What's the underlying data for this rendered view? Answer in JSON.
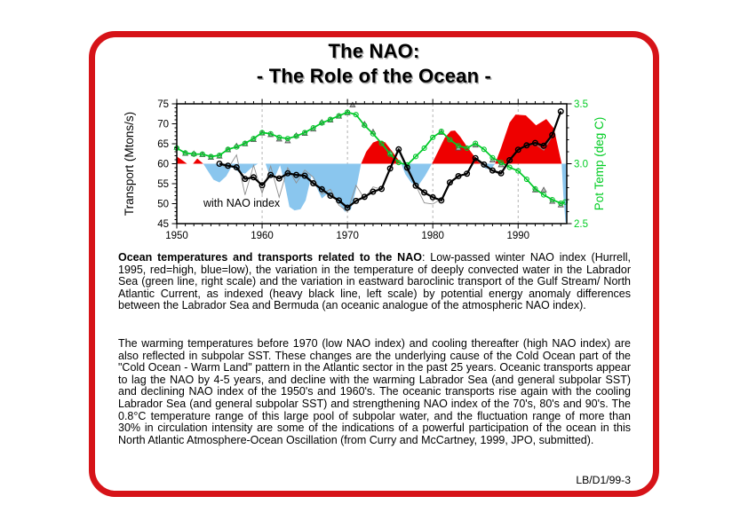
{
  "title": {
    "line1": "The NAO:",
    "line2": "- The Role of the Ocean -"
  },
  "caption_main": {
    "bold": "Ocean temperatures and transports related to the NAO",
    "rest": ": Low-passed winter NAO index (Hurrell, 1995, red=high, blue=low), the variation in the temperature of deeply convected water in the Labrador Sea (green line, right scale) and the variation in eastward baroclinic transport of the Gulf Stream/ North Atlantic Current, as indexed (heavy black line, left scale) by potential energy anomaly differences between the Labrador Sea and Bermuda (an oceanic analogue of the atmospheric NAO index)."
  },
  "caption_discussion": "The warming temperatures before 1970 (low NAO index) and cooling thereafter (high NAO index) are also reflected in subpolar SST. These changes are the underlying cause of the Cold Ocean part of the \"Cold Ocean - Warm Land\" pattern in the Atlantic sector in the past 25 years. Oceanic transports appear to lag the NAO by 4-5 years, and decline with the warming Labrador Sea (and general subpolar SST) and declining NAO index of the 1950's and 1960's. The oceanic transports rise again with the cooling Labrador Sea (and general subpolar SST) and strengthening NAO index of the 70's, 80's and 90's. The 0.8°C temperature range of this large pool of subpolar water, and the fluctuation range of more than 30% in circulation intensity are some of the indications of a powerful participation of the ocean in this North Atlantic Atmosphere-Ocean Oscillation (from Curry and McCartney, 1999, JPO, submitted).",
  "footer": {
    "doc_id": "LB/D1/99-3"
  },
  "chart_data": {
    "type": "line",
    "annotation": "with NAO index",
    "x_axis": {
      "min": 1950,
      "max": 1995.7,
      "major_ticks": [
        1950,
        1960,
        1970,
        1980,
        1990
      ],
      "gridlines": [
        1960,
        1970,
        1980,
        1990
      ],
      "minor_step": 1
    },
    "left_axis": {
      "label": "Transport (Mtons/s)",
      "min": 45,
      "max": 75,
      "ticks": [
        45,
        50,
        55,
        60,
        65,
        70,
        75
      ],
      "minor_step": 1,
      "color": "#000000"
    },
    "right_axis": {
      "label": "Pot Temp (deg C)",
      "min": 2.5,
      "max": 3.5,
      "ticks": [
        2.5,
        3.0,
        3.5
      ],
      "minor_step": 0.1,
      "color": "#00cc22"
    },
    "colors": {
      "nao_red": "#ee0000",
      "nao_blue": "#8ac6ee",
      "temp_green": "#00c828",
      "transport_black": "#000000",
      "transport_gray": "#909090",
      "triangle_gray": "#b8b8b8",
      "gridline": "#aaaaaa"
    },
    "nao_index": {
      "baseline": 60,
      "note": "red = high NAO, blue = low NAO, plotted on left (transport) scale",
      "points": [
        [
          1950,
          61.8
        ],
        [
          1950.7,
          60.8
        ],
        [
          1951.2,
          60
        ],
        [
          1951.9,
          60
        ],
        [
          1952.4,
          61.3
        ],
        [
          1953.1,
          60
        ],
        [
          1953.7,
          58
        ],
        [
          1954.3,
          56
        ],
        [
          1955,
          55.3
        ],
        [
          1955.8,
          56.9
        ],
        [
          1956.4,
          59.2
        ],
        [
          1957.2,
          58
        ],
        [
          1958,
          57.5
        ],
        [
          1958.7,
          58.9
        ],
        [
          1959.5,
          60
        ],
        [
          1960.4,
          60
        ],
        [
          1961,
          56.3
        ],
        [
          1961.6,
          57.2
        ],
        [
          1962.1,
          59.6
        ],
        [
          1962.6,
          55.5
        ],
        [
          1963.2,
          49.2
        ],
        [
          1963.8,
          48.3
        ],
        [
          1964.5,
          48.6
        ],
        [
          1965.1,
          50.8
        ],
        [
          1965.8,
          57.2
        ],
        [
          1966.4,
          54
        ],
        [
          1967,
          51.3
        ],
        [
          1967.7,
          52.6
        ],
        [
          1968.4,
          52
        ],
        [
          1969.1,
          49.8
        ],
        [
          1969.7,
          48
        ],
        [
          1970.4,
          48.5
        ],
        [
          1971,
          53.5
        ],
        [
          1971.6,
          60
        ],
        [
          1972.2,
          63
        ],
        [
          1973,
          65.3
        ],
        [
          1973.6,
          65.8
        ],
        [
          1974.4,
          65.4
        ],
        [
          1975.2,
          63.2
        ],
        [
          1976.3,
          60
        ],
        [
          1976.8,
          57.3
        ],
        [
          1977.5,
          55.2
        ],
        [
          1978.3,
          54.5
        ],
        [
          1979.1,
          57
        ],
        [
          1979.9,
          60
        ],
        [
          1980.6,
          63
        ],
        [
          1981.4,
          66.5
        ],
        [
          1982.1,
          68.2
        ],
        [
          1982.6,
          68.3
        ],
        [
          1983.2,
          66.8
        ],
        [
          1984,
          64.3
        ],
        [
          1985,
          61.5
        ],
        [
          1985.7,
          60
        ],
        [
          1986.2,
          58.7
        ],
        [
          1986.9,
          58.9
        ],
        [
          1987.3,
          60
        ],
        [
          1988,
          64
        ],
        [
          1989,
          70.3
        ],
        [
          1989.7,
          72.3
        ],
        [
          1990.9,
          72.1
        ],
        [
          1992.1,
          69.6
        ],
        [
          1993.3,
          71.2
        ],
        [
          1994.2,
          68.8
        ],
        [
          1995.1,
          60
        ],
        [
          1995.3,
          52
        ],
        [
          1995.55,
          45.4
        ],
        [
          1995.7,
          45.3
        ]
      ]
    },
    "transport_heavy": {
      "name": "Gulf Stream / North Atlantic Current transport (heavy black line, left scale, Mtons/s)",
      "points": [
        [
          1955,
          60
        ],
        [
          1956,
          59.5
        ],
        [
          1957,
          59.1
        ],
        [
          1958,
          56.2
        ],
        [
          1959,
          56.6
        ],
        [
          1960,
          54.6
        ],
        [
          1961,
          57.2
        ],
        [
          1962,
          56.3
        ],
        [
          1963,
          57.6
        ],
        [
          1964,
          57.2
        ],
        [
          1965,
          57
        ],
        [
          1966,
          55.1
        ],
        [
          1967,
          53.6
        ],
        [
          1968,
          52
        ],
        [
          1969,
          50.8
        ],
        [
          1970,
          49
        ],
        [
          1971,
          50.7
        ],
        [
          1972,
          51.7
        ],
        [
          1973,
          53
        ],
        [
          1974,
          53.7
        ],
        [
          1975,
          58.8
        ],
        [
          1976,
          63.6
        ],
        [
          1977,
          59
        ],
        [
          1978,
          54.5
        ],
        [
          1979,
          52.8
        ],
        [
          1980,
          51.6
        ],
        [
          1981,
          50.8
        ],
        [
          1982,
          55.3
        ],
        [
          1983,
          56.9
        ],
        [
          1984,
          57.5
        ],
        [
          1985,
          61.4
        ],
        [
          1986,
          59.8
        ],
        [
          1987,
          58.3
        ],
        [
          1988,
          57.6
        ],
        [
          1989,
          60.9
        ],
        [
          1990,
          63.5
        ],
        [
          1991,
          64.6
        ],
        [
          1992,
          65.2
        ],
        [
          1993,
          64.5
        ],
        [
          1994,
          67.2
        ],
        [
          1995,
          73.1
        ]
      ]
    },
    "transport_thin": {
      "name": "unsmoothed transport (thin gray line, left scale, Mtons/s)",
      "points": [
        [
          1955,
          60
        ],
        [
          1956,
          58.8
        ],
        [
          1957,
          62.2
        ],
        [
          1958,
          52.2
        ],
        [
          1959,
          59.6
        ],
        [
          1960,
          52.6
        ],
        [
          1961,
          59.4
        ],
        [
          1962,
          51.6
        ],
        [
          1963,
          59
        ],
        [
          1964,
          55.2
        ],
        [
          1965,
          58.4
        ],
        [
          1966,
          56.6
        ],
        [
          1967,
          52.4
        ],
        [
          1968,
          53.6
        ],
        [
          1969,
          49.6
        ],
        [
          1970,
          48
        ],
        [
          1971,
          54.6
        ],
        [
          1972,
          51.2
        ],
        [
          1973,
          54.2
        ],
        [
          1974,
          53.6
        ],
        [
          1975,
          58.6
        ],
        [
          1976,
          63.2
        ],
        [
          1977,
          58.2
        ],
        [
          1978,
          54.6
        ],
        [
          1979,
          50.2
        ],
        [
          1980,
          49.9
        ],
        [
          1981,
          51.2
        ],
        [
          1982,
          54.8
        ],
        [
          1983,
          57.2
        ],
        [
          1984,
          57.2
        ],
        [
          1985,
          61.1
        ],
        [
          1986,
          59.5
        ],
        [
          1987,
          58.1
        ],
        [
          1988,
          57.3
        ],
        [
          1989,
          60.7
        ],
        [
          1990,
          63.3
        ],
        [
          1991,
          64.4
        ],
        [
          1992,
          65
        ],
        [
          1993,
          63.4
        ],
        [
          1994,
          67
        ],
        [
          1995,
          72.9
        ]
      ]
    },
    "labrador_temp": {
      "name": "Labrador Sea potential temperature (green line, right scale, deg C)",
      "points": [
        [
          1950,
          3.13
        ],
        [
          1951,
          3.09
        ],
        [
          1952,
          3.08
        ],
        [
          1953,
          3.08
        ],
        [
          1954,
          3.06
        ],
        [
          1955,
          3.07
        ],
        [
          1956,
          3.12
        ],
        [
          1957,
          3.14
        ],
        [
          1958,
          3.17
        ],
        [
          1959,
          3.21
        ],
        [
          1960,
          3.26
        ],
        [
          1961,
          3.25
        ],
        [
          1962,
          3.22
        ],
        [
          1963,
          3.21
        ],
        [
          1964,
          3.23
        ],
        [
          1965,
          3.26
        ],
        [
          1966,
          3.3
        ],
        [
          1967,
          3.34
        ],
        [
          1968,
          3.37
        ],
        [
          1969,
          3.4
        ],
        [
          1970,
          3.43
        ],
        [
          1971,
          3.41
        ],
        [
          1972,
          3.32
        ],
        [
          1973,
          3.25
        ],
        [
          1974,
          3.17
        ],
        [
          1975,
          3.08
        ],
        [
          1976,
          3.01
        ],
        [
          1977,
          2.99
        ],
        [
          1978,
          3.06
        ],
        [
          1979,
          3.13
        ],
        [
          1980,
          3.22
        ],
        [
          1981,
          3.27
        ],
        [
          1982,
          3.2
        ],
        [
          1983,
          3.15
        ],
        [
          1984,
          3.13
        ],
        [
          1985,
          3.17
        ],
        [
          1986,
          3.12
        ],
        [
          1987,
          3.05
        ],
        [
          1988,
          3.01
        ],
        [
          1989,
          2.97
        ],
        [
          1990,
          2.94
        ],
        [
          1991,
          2.87
        ],
        [
          1992,
          2.79
        ],
        [
          1993,
          2.74
        ],
        [
          1994,
          2.7
        ],
        [
          1995,
          2.67
        ],
        [
          1995.5,
          2.68
        ]
      ]
    },
    "temp_triangles": {
      "name": "individual temperature estimates (gray triangles, right scale, deg C)",
      "points": [
        [
          1950,
          3.135
        ],
        [
          1951,
          3.085
        ],
        [
          1952,
          3.083
        ],
        [
          1953,
          3.075
        ],
        [
          1954,
          3.052
        ],
        [
          1955,
          3.062
        ],
        [
          1956,
          3.115
        ],
        [
          1957,
          3.148
        ],
        [
          1958,
          3.165
        ],
        [
          1959,
          3.2
        ],
        [
          1960,
          3.255
        ],
        [
          1961,
          3.242
        ],
        [
          1962,
          3.205
        ],
        [
          1963,
          3.19
        ],
        [
          1964,
          3.235
        ],
        [
          1965,
          3.252
        ],
        [
          1966,
          3.288
        ],
        [
          1967,
          3.345
        ],
        [
          1968,
          3.363
        ],
        [
          1969,
          3.395
        ],
        [
          1970,
          3.424
        ],
        [
          1970.6,
          3.49
        ],
        [
          1972,
          3.33
        ],
        [
          1973,
          3.265
        ],
        [
          1975,
          3.09
        ],
        [
          1981,
          3.26
        ],
        [
          1983,
          3.13
        ],
        [
          1985,
          3.155
        ],
        [
          1987,
          3.03
        ],
        [
          1988,
          2.99
        ],
        [
          1992,
          2.78
        ],
        [
          1993,
          2.78
        ],
        [
          1994,
          2.685
        ],
        [
          1995,
          2.655
        ]
      ]
    }
  }
}
